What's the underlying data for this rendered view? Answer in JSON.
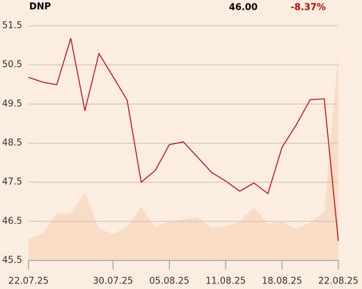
{
  "chart_data": {
    "type": "line",
    "symbol": "DNP",
    "last": "46.00",
    "change": "-8.37%",
    "categories": [
      "22.07.25",
      null,
      null,
      null,
      null,
      null,
      "30.07.25",
      null,
      null,
      null,
      "05.08.25",
      null,
      null,
      null,
      "11.08.25",
      null,
      null,
      null,
      "18.08.25",
      null,
      null,
      null,
      "22.08.25"
    ],
    "series": [
      {
        "color": "#c00000",
        "values": [
          50.18,
          50.06,
          49.99,
          51.18,
          49.33,
          50.79,
          50.2,
          49.6,
          47.5,
          47.8,
          48.46,
          48.53,
          48.14,
          47.75,
          47.53,
          47.27,
          47.48,
          47.21,
          48.39,
          48.96,
          49.61,
          49.63,
          46.0
        ]
      }
    ],
    "volume": {
      "color": "#f8dcc6",
      "values": [
        30,
        38,
        67,
        68,
        98,
        46,
        38,
        48,
        77,
        48,
        56,
        59,
        62,
        47,
        49,
        56,
        76,
        53,
        56,
        45,
        54,
        70,
        296
      ]
    },
    "ylim": [
      45.5,
      51.5
    ],
    "yticks": [
      45.5,
      46.5,
      47.5,
      48.5,
      49.5,
      50.5,
      51.5
    ],
    "grid": true
  }
}
